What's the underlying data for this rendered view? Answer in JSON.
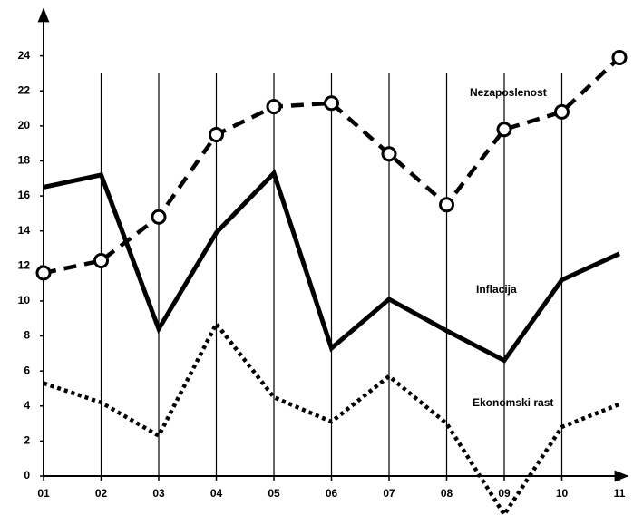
{
  "chart_data": {
    "type": "line",
    "categories": [
      "01",
      "02",
      "03",
      "04",
      "05",
      "06",
      "07",
      "08",
      "09",
      "10",
      "11"
    ],
    "series": [
      {
        "name": "Nezaposlenost",
        "color": "#000000",
        "style": "dashed",
        "values": [
          11.6,
          12.3,
          14.8,
          19.5,
          21.1,
          21.3,
          18.4,
          15.5,
          19.8,
          20.8,
          23.9
        ]
      },
      {
        "name": "Inflacija",
        "color": "#000000",
        "style": "solid",
        "values": [
          16.5,
          17.2,
          8.4,
          13.9,
          17.3,
          7.3,
          10.1,
          8.3,
          6.6,
          11.2,
          12.7
        ]
      },
      {
        "name": "Ekonomski rast",
        "color": "#000000",
        "style": "dotted",
        "values": [
          5.3,
          4.2,
          2.3,
          8.7,
          4.5,
          3.1,
          5.7,
          3.0,
          -2.2,
          2.8,
          4.1
        ]
      }
    ],
    "ylim": [
      0,
      26
    ],
    "yticks": [
      0,
      2,
      4,
      6,
      8,
      10,
      12,
      14,
      16,
      18,
      20,
      22,
      24
    ],
    "grid": true
  }
}
